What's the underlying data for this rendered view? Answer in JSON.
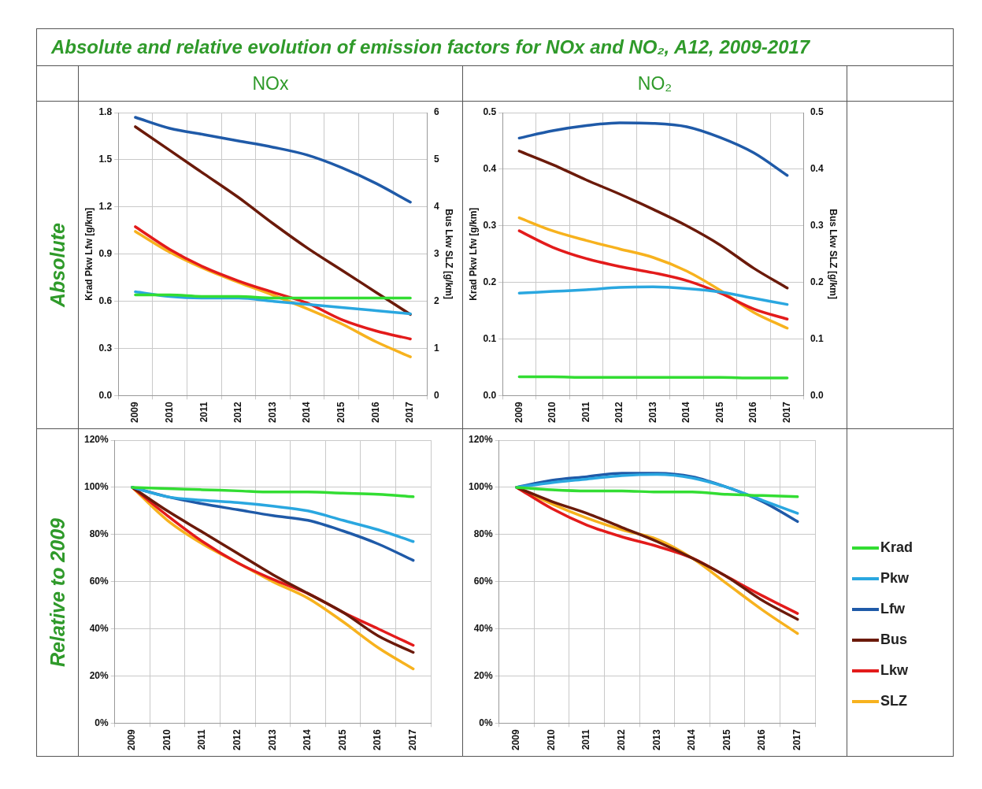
{
  "chart_data": [
    {
      "type": "line",
      "title": "NOx",
      "annotations": [
        "Absolute and relative evolution of emission factors for NOx and NO₂, A12, 2009-2017",
        "Absolute"
      ],
      "ylabel": "Krad Pkw Lfw [g/km]",
      "y2label": "Bus Lkw SLZ [g/km]",
      "categories": [
        "2009",
        "2010",
        "2011",
        "2012",
        "2013",
        "2014",
        "2015",
        "2016",
        "2017"
      ],
      "ylim": [
        0,
        1.8
      ],
      "yticks": [
        {
          "value": 0,
          "label": "0.0"
        },
        0.3,
        0.6,
        0.9,
        1.2,
        1.5,
        1.8
      ],
      "y2lim": [
        0,
        6
      ],
      "y2ticks": [
        0,
        1,
        2,
        3,
        4,
        5,
        6
      ],
      "grid": true,
      "marker": "none",
      "series": [
        {
          "color": "#33dd33",
          "values": [
            0.64,
            0.64,
            0.63,
            0.63,
            0.62,
            0.62,
            0.62,
            0.62,
            0.62
          ]
        },
        {
          "color": "#2aa7e0",
          "values": [
            0.66,
            0.63,
            0.62,
            0.62,
            0.6,
            0.58,
            0.56,
            0.54,
            0.52
          ]
        },
        {
          "color": "#1f5aa8",
          "values": [
            1.77,
            1.7,
            1.66,
            1.62,
            1.58,
            1.53,
            1.45,
            1.35,
            1.23
          ]
        },
        {
          "color": "#6b1a0a",
          "axis": "y2",
          "values": [
            5.7,
            5.2,
            4.7,
            4.2,
            3.65,
            3.13,
            2.66,
            2.19,
            1.72
          ]
        },
        {
          "color": "#e31b1b",
          "axis": "y2",
          "values": [
            3.58,
            3.1,
            2.72,
            2.43,
            2.19,
            1.96,
            1.61,
            1.37,
            1.2
          ]
        },
        {
          "color": "#f7b21e",
          "axis": "y2",
          "values": [
            3.48,
            3.04,
            2.69,
            2.4,
            2.13,
            1.84,
            1.52,
            1.14,
            0.82
          ]
        }
      ]
    },
    {
      "type": "line",
      "title": "NO₂",
      "ylabel": "Krad Pkw Lfw [g/km]",
      "y2label": "Bus Lkw SLZ [g/km]",
      "categories": [
        "2009",
        "2010",
        "2011",
        "2012",
        "2013",
        "2014",
        "2015",
        "2016",
        "2017"
      ],
      "ylim": [
        0,
        0.5
      ],
      "yticks": [
        {
          "value": 0,
          "label": "0.0"
        },
        0.1,
        0.2,
        0.3,
        0.4,
        0.5
      ],
      "y2lim": [
        0,
        0.5
      ],
      "y2ticks": [
        {
          "value": 0,
          "label": "0.0"
        },
        0.1,
        0.2,
        0.3,
        0.4,
        0.5
      ],
      "grid": true,
      "marker": "none",
      "series": [
        {
          "color": "#33dd33",
          "values": [
            0.033,
            0.033,
            0.032,
            0.032,
            0.032,
            0.032,
            0.032,
            0.031,
            0.031
          ]
        },
        {
          "color": "#2aa7e0",
          "values": [
            0.181,
            0.184,
            0.187,
            0.191,
            0.192,
            0.189,
            0.183,
            0.172,
            0.161
          ]
        },
        {
          "color": "#1f5aa8",
          "values": [
            0.455,
            0.468,
            0.477,
            0.482,
            0.481,
            0.475,
            0.456,
            0.429,
            0.389
          ]
        },
        {
          "color": "#6b1a0a",
          "axis": "y2",
          "values": [
            0.432,
            0.408,
            0.381,
            0.356,
            0.329,
            0.3,
            0.266,
            0.225,
            0.19
          ]
        },
        {
          "color": "#e31b1b",
          "axis": "y2",
          "values": [
            0.291,
            0.262,
            0.242,
            0.228,
            0.217,
            0.203,
            0.181,
            0.153,
            0.135
          ]
        },
        {
          "color": "#f7b21e",
          "axis": "y2",
          "values": [
            0.314,
            0.291,
            0.274,
            0.259,
            0.244,
            0.22,
            0.186,
            0.147,
            0.119
          ]
        }
      ]
    },
    {
      "type": "line",
      "annotations": [
        "Relative to 2009"
      ],
      "categories": [
        "2009",
        "2010",
        "2011",
        "2012",
        "2013",
        "2014",
        "2015",
        "2016",
        "2017"
      ],
      "ylim": [
        0,
        120
      ],
      "yticks": [
        {
          "value": 0,
          "label": "0%"
        },
        {
          "value": 20,
          "label": "20%"
        },
        {
          "value": 40,
          "label": "40%"
        },
        {
          "value": 60,
          "label": "60%"
        },
        {
          "value": 80,
          "label": "80%"
        },
        {
          "value": 100,
          "label": "100%"
        },
        {
          "value": 120,
          "label": "120%"
        }
      ],
      "grid": true,
      "marker": "none",
      "series": [
        {
          "color": "#33dd33",
          "values": [
            100,
            99.5,
            99,
            98.5,
            98,
            98,
            97.5,
            97,
            96
          ]
        },
        {
          "color": "#2aa7e0",
          "values": [
            100,
            96,
            94.5,
            93.5,
            92,
            90,
            86,
            82,
            77
          ]
        },
        {
          "color": "#1f5aa8",
          "values": [
            100,
            96,
            93,
            90.5,
            88,
            86,
            81.5,
            76,
            69
          ]
        },
        {
          "color": "#6b1a0a",
          "values": [
            100,
            90,
            81,
            72,
            63,
            55,
            47,
            37,
            30
          ]
        },
        {
          "color": "#e31b1b",
          "values": [
            100,
            88,
            77,
            68,
            61,
            55,
            47,
            40,
            33
          ]
        },
        {
          "color": "#f7b21e",
          "values": [
            100,
            86,
            76,
            68,
            60,
            53,
            43,
            32,
            23
          ]
        }
      ]
    },
    {
      "type": "line",
      "categories": [
        "2009",
        "2010",
        "2011",
        "2012",
        "2013",
        "2014",
        "2015",
        "2016",
        "2017"
      ],
      "ylim": [
        0,
        120
      ],
      "yticks": [
        {
          "value": 0,
          "label": "0%"
        },
        {
          "value": 20,
          "label": "20%"
        },
        {
          "value": 40,
          "label": "40%"
        },
        {
          "value": 60,
          "label": "60%"
        },
        {
          "value": 80,
          "label": "80%"
        },
        {
          "value": 100,
          "label": "100%"
        },
        {
          "value": 120,
          "label": "120%"
        }
      ],
      "grid": true,
      "marker": "none",
      "legend": "right",
      "series": [
        {
          "name": "Krad",
          "color": "#33dd33",
          "values": [
            100,
            99,
            98.5,
            98.5,
            98,
            98,
            97,
            96.5,
            96
          ]
        },
        {
          "name": "Pkw",
          "color": "#2aa7e0",
          "values": [
            100,
            102,
            103.5,
            105,
            105.5,
            104,
            100,
            94.5,
            89
          ]
        },
        {
          "name": "Lfw",
          "color": "#1f5aa8",
          "values": [
            100,
            103,
            104.5,
            106,
            106,
            104.5,
            100,
            94,
            85.5
          ]
        },
        {
          "name": "Bus",
          "color": "#6b1a0a",
          "values": [
            100,
            94,
            89,
            83,
            77,
            70,
            62,
            52,
            44
          ]
        },
        {
          "name": "Lkw",
          "color": "#e31b1b",
          "values": [
            100,
            91,
            84,
            79,
            75,
            70,
            62,
            54,
            46.5
          ]
        },
        {
          "name": "SLZ",
          "color": "#f7b21e",
          "values": [
            100,
            93,
            87,
            82,
            78,
            70,
            59,
            48,
            38
          ]
        }
      ]
    }
  ]
}
